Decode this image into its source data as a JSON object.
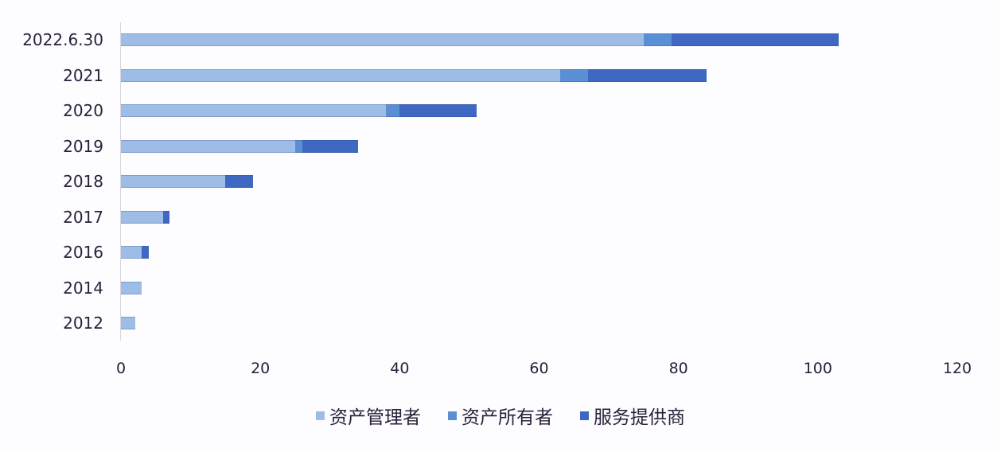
{
  "chart_data": {
    "type": "bar",
    "orientation": "horizontal",
    "stacked": true,
    "title": "",
    "xlabel": "",
    "ylabel": "",
    "xlim": [
      0,
      120
    ],
    "x_ticks": [
      "0",
      "20",
      "40",
      "60",
      "80",
      "100",
      "120"
    ],
    "grid": false,
    "legend_position": "bottom",
    "categories": [
      "2022.6.30",
      "2021",
      "2020",
      "2019",
      "2018",
      "2017",
      "2016",
      "2014",
      "2012"
    ],
    "series": [
      {
        "name": "资产管理者",
        "color": "#9dbde6",
        "values": [
          75,
          63,
          38,
          25,
          15,
          6,
          3,
          3,
          2
        ]
      },
      {
        "name": "资产所有者",
        "color": "#5b8fd3",
        "values": [
          4,
          4,
          2,
          1,
          0,
          0,
          0,
          0,
          0
        ]
      },
      {
        "name": "服务提供商",
        "color": "#3f68c2",
        "values": [
          24,
          17,
          11,
          8,
          4,
          1,
          1,
          0,
          0
        ]
      }
    ]
  }
}
